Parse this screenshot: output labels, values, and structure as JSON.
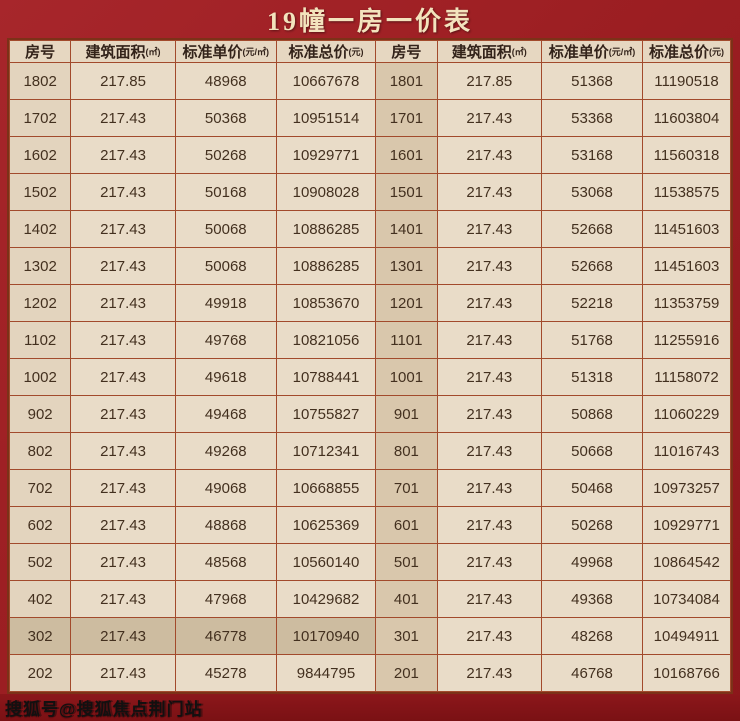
{
  "title": "19幢一房一价表",
  "watermark": "搜狐号@搜狐焦点荆门站",
  "colors": {
    "frame_red": "#9d1f23",
    "cell_beige": "#e9dcc8",
    "grid_border": "#a24a2c",
    "text_dark": "#43301f",
    "highlight_cell": "#cdbca0",
    "title_cream": "#f3e3bd"
  },
  "chart_data": {
    "type": "table",
    "title": "19幢一房一价表",
    "headers": [
      {
        "label": "房号",
        "unit": ""
      },
      {
        "label": "建筑面积",
        "unit": "(㎡)"
      },
      {
        "label": "标准单价",
        "unit": "(元/㎡)"
      },
      {
        "label": "标准总价",
        "unit": "(元)"
      },
      {
        "label": "房号",
        "unit": ""
      },
      {
        "label": "建筑面积",
        "unit": "(㎡)"
      },
      {
        "label": "标准单价",
        "unit": "(元/㎡)"
      },
      {
        "label": "标准总价",
        "unit": "(元)"
      }
    ],
    "rows": [
      {
        "cells": [
          "1802",
          "217.85",
          "48968",
          "10667678",
          "1801",
          "217.85",
          "51368",
          "11190518"
        ],
        "highlight": false
      },
      {
        "cells": [
          "1702",
          "217.43",
          "50368",
          "10951514",
          "1701",
          "217.43",
          "53368",
          "11603804"
        ],
        "highlight": false
      },
      {
        "cells": [
          "1602",
          "217.43",
          "50268",
          "10929771",
          "1601",
          "217.43",
          "53168",
          "11560318"
        ],
        "highlight": false
      },
      {
        "cells": [
          "1502",
          "217.43",
          "50168",
          "10908028",
          "1501",
          "217.43",
          "53068",
          "11538575"
        ],
        "highlight": false
      },
      {
        "cells": [
          "1402",
          "217.43",
          "50068",
          "10886285",
          "1401",
          "217.43",
          "52668",
          "11451603"
        ],
        "highlight": false
      },
      {
        "cells": [
          "1302",
          "217.43",
          "50068",
          "10886285",
          "1301",
          "217.43",
          "52668",
          "11451603"
        ],
        "highlight": false
      },
      {
        "cells": [
          "1202",
          "217.43",
          "49918",
          "10853670",
          "1201",
          "217.43",
          "52218",
          "11353759"
        ],
        "highlight": false
      },
      {
        "cells": [
          "1102",
          "217.43",
          "49768",
          "10821056",
          "1101",
          "217.43",
          "51768",
          "11255916"
        ],
        "highlight": false
      },
      {
        "cells": [
          "1002",
          "217.43",
          "49618",
          "10788441",
          "1001",
          "217.43",
          "51318",
          "11158072"
        ],
        "highlight": false
      },
      {
        "cells": [
          "902",
          "217.43",
          "49468",
          "10755827",
          "901",
          "217.43",
          "50868",
          "11060229"
        ],
        "highlight": false
      },
      {
        "cells": [
          "802",
          "217.43",
          "49268",
          "10712341",
          "801",
          "217.43",
          "50668",
          "11016743"
        ],
        "highlight": false
      },
      {
        "cells": [
          "702",
          "217.43",
          "49068",
          "10668855",
          "701",
          "217.43",
          "50468",
          "10973257"
        ],
        "highlight": false
      },
      {
        "cells": [
          "602",
          "217.43",
          "48868",
          "10625369",
          "601",
          "217.43",
          "50268",
          "10929771"
        ],
        "highlight": false
      },
      {
        "cells": [
          "502",
          "217.43",
          "48568",
          "10560140",
          "501",
          "217.43",
          "49968",
          "10864542"
        ],
        "highlight": false
      },
      {
        "cells": [
          "402",
          "217.43",
          "47968",
          "10429682",
          "401",
          "217.43",
          "49368",
          "10734084"
        ],
        "highlight": false
      },
      {
        "cells": [
          "302",
          "217.43",
          "46778",
          "10170940",
          "301",
          "217.43",
          "48268",
          "10494911"
        ],
        "highlight": true
      },
      {
        "cells": [
          "202",
          "217.43",
          "45278",
          "9844795",
          "201",
          "217.43",
          "46768",
          "10168766"
        ],
        "highlight": false
      }
    ]
  }
}
